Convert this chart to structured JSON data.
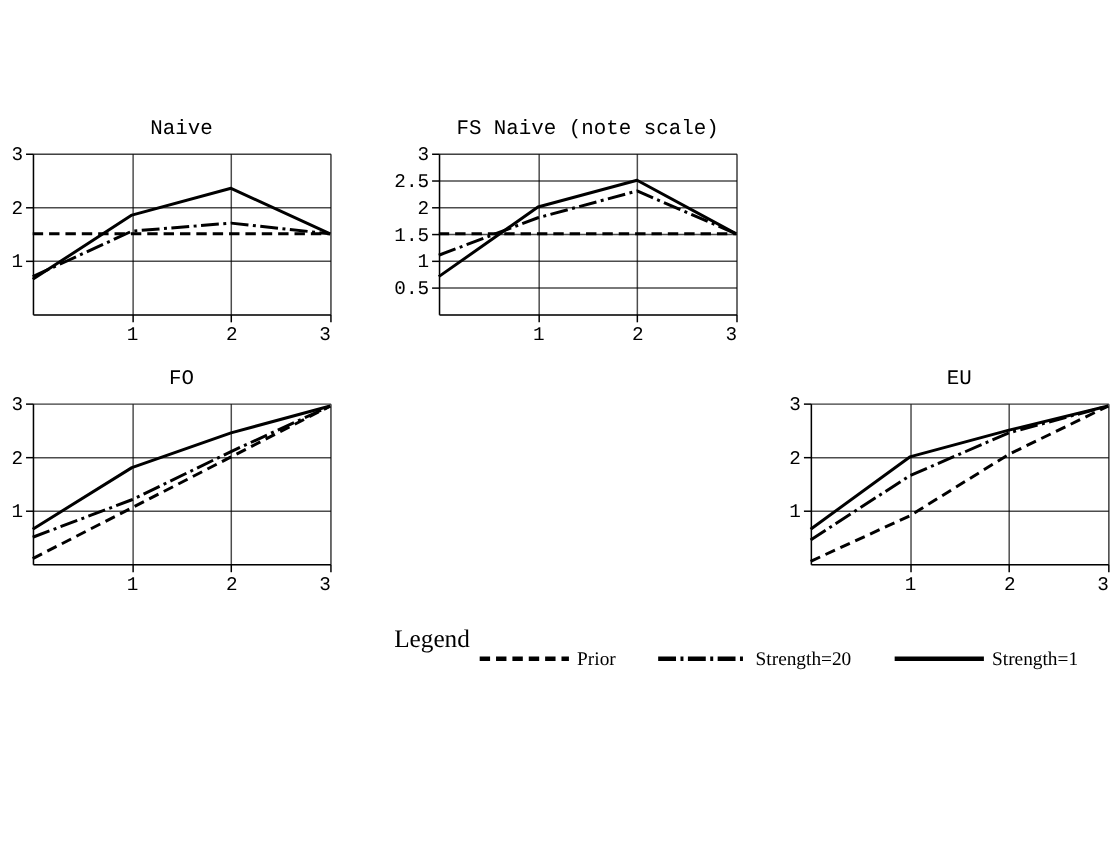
{
  "chart_data": [
    {
      "type": "line",
      "title": "Naive",
      "x": [
        0,
        1,
        2,
        3
      ],
      "xlim": [
        0,
        3
      ],
      "xticks": [
        1,
        2,
        3
      ],
      "ylim": [
        0,
        3
      ],
      "yticks": [
        1,
        2,
        3
      ],
      "grid": true,
      "series": [
        {
          "color": "#000000",
          "line_style": "dashed",
          "values": [
            1.5,
            1.5,
            1.5,
            1.5
          ]
        },
        {
          "color": "#000000",
          "line_style": "dashdot",
          "values": [
            0.7,
            1.55,
            1.7,
            1.5
          ]
        },
        {
          "color": "#000000",
          "line_style": "solid",
          "values": [
            0.65,
            1.85,
            2.35,
            1.5
          ]
        }
      ]
    },
    {
      "type": "line",
      "title": "FS Naive (note scale)",
      "x": [
        0,
        1,
        2,
        3
      ],
      "xlim": [
        0,
        3
      ],
      "xticks": [
        1,
        2,
        3
      ],
      "ylim": [
        0,
        3
      ],
      "yticks": [
        0.5,
        1,
        1.5,
        2,
        2.5,
        3
      ],
      "grid": true,
      "series": [
        {
          "color": "#000000",
          "line_style": "dashed",
          "values": [
            1.5,
            1.5,
            1.5,
            1.5
          ]
        },
        {
          "color": "#000000",
          "line_style": "dashdot",
          "values": [
            1.1,
            1.8,
            2.3,
            1.5
          ]
        },
        {
          "color": "#000000",
          "line_style": "solid",
          "values": [
            0.7,
            2.0,
            2.5,
            1.5
          ]
        }
      ]
    },
    {
      "type": "line",
      "title": "FO",
      "x": [
        0,
        1,
        2,
        3
      ],
      "xlim": [
        0,
        3
      ],
      "xticks": [
        1,
        2,
        3
      ],
      "ylim": [
        0,
        3
      ],
      "yticks": [
        1,
        2,
        3
      ],
      "grid": true,
      "series": [
        {
          "color": "#000000",
          "line_style": "dashed",
          "values": [
            0.1,
            1.05,
            2.0,
            2.95
          ]
        },
        {
          "color": "#000000",
          "line_style": "dashdot",
          "values": [
            0.5,
            1.2,
            2.1,
            2.95
          ]
        },
        {
          "color": "#000000",
          "line_style": "solid",
          "values": [
            0.65,
            1.8,
            2.45,
            2.95
          ]
        }
      ]
    },
    {
      "type": "line",
      "title": "EU",
      "x": [
        0,
        1,
        2,
        3
      ],
      "xlim": [
        0,
        3
      ],
      "xticks": [
        1,
        2,
        3
      ],
      "ylim": [
        0,
        3
      ],
      "yticks": [
        1,
        2,
        3
      ],
      "grid": true,
      "legend": "bottom",
      "legend_title": "Legend",
      "series": [
        {
          "name": "Prior",
          "color": "#000000",
          "line_style": "dashed",
          "values": [
            0.05,
            0.9,
            2.05,
            2.95
          ]
        },
        {
          "name": "Strength=20",
          "color": "#000000",
          "line_style": "dashdot",
          "values": [
            0.45,
            1.65,
            2.45,
            2.95
          ]
        },
        {
          "name": "Strength=1",
          "color": "#000000",
          "line_style": "solid",
          "values": [
            0.65,
            2.0,
            2.5,
            2.95
          ]
        }
      ]
    }
  ]
}
